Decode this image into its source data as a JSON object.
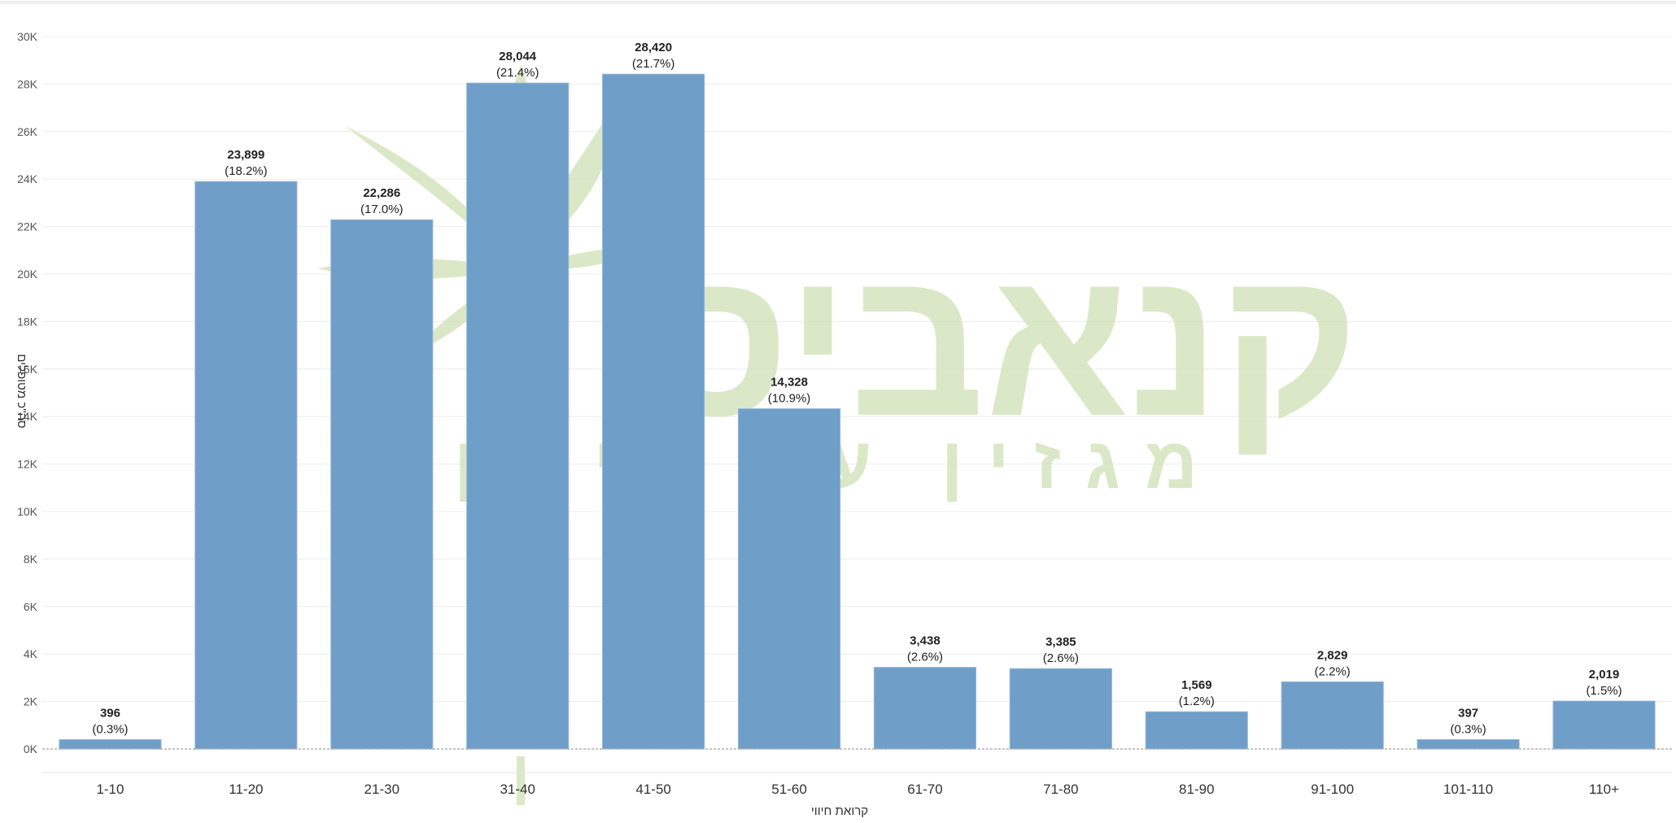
{
  "colors": {
    "bar": "#6f9ec8",
    "grid": "#ececec",
    "axis": "#cfcfcf",
    "watermark": "#cfe0b4"
  },
  "watermark": {
    "logo_text": "קנאביס",
    "tagline": "מגזין עם כיוון",
    "icon": "cannabis-leaf-icon"
  },
  "chart_data": {
    "type": "bar",
    "title": "",
    "xlabel": "קרואת חיווי",
    "ylabel": "סה\"כ מטופלים",
    "ylim": [
      0,
      30000
    ],
    "y_ticks": [
      "0K",
      "2K",
      "4K",
      "6K",
      "8K",
      "10K",
      "12K",
      "14K",
      "16K",
      "18K",
      "20K",
      "22K",
      "24K",
      "26K",
      "28K",
      "30K"
    ],
    "y_tick_values": [
      0,
      2000,
      4000,
      6000,
      8000,
      10000,
      12000,
      14000,
      16000,
      18000,
      20000,
      22000,
      24000,
      26000,
      28000,
      30000
    ],
    "grid": true,
    "categories": [
      "1-10",
      "11-20",
      "21-30",
      "31-40",
      "41-50",
      "51-60",
      "61-70",
      "71-80",
      "81-90",
      "91-100",
      "101-110",
      "110+"
    ],
    "values": [
      396,
      23899,
      22286,
      28044,
      28420,
      14328,
      3438,
      3385,
      1569,
      2829,
      397,
      2019
    ],
    "value_labels": [
      "396",
      "23,899",
      "22,286",
      "28,044",
      "28,420",
      "14,328",
      "3,438",
      "3,385",
      "1,569",
      "2,829",
      "397",
      "2,019"
    ],
    "percent_labels": [
      "(0.3%)",
      "(18.2%)",
      "(17.0%)",
      "(21.4%)",
      "(21.7%)",
      "(10.9%)",
      "(2.6%)",
      "(2.6%)",
      "(1.2%)",
      "(2.2%)",
      "(0.3%)",
      "(1.5%)"
    ]
  }
}
